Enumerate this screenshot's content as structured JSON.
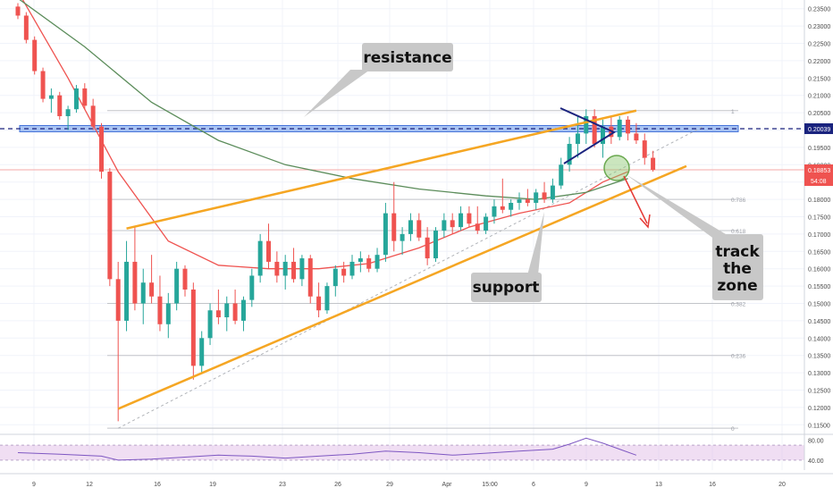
{
  "chart_data": {
    "type": "candlestick",
    "title": "",
    "price_axis": {
      "ylim": [
        0.1125,
        0.2375
      ],
      "tick_labels": [
        "0.23500",
        "0.23000",
        "0.22500",
        "0.22000",
        "0.21500",
        "0.21000",
        "0.20500",
        "0.20000",
        "0.19500",
        "0.19000",
        "0.18500",
        "0.18000",
        "0.17500",
        "0.17000",
        "0.16500",
        "0.16000",
        "0.15500",
        "0.15000",
        "0.14500",
        "0.14000",
        "0.13500",
        "0.13000",
        "0.12500",
        "0.12000",
        "0.11500"
      ],
      "tick_values": [
        0.235,
        0.23,
        0.225,
        0.22,
        0.215,
        0.21,
        0.205,
        0.2,
        0.195,
        0.19,
        0.185,
        0.18,
        0.175,
        0.17,
        0.165,
        0.16,
        0.155,
        0.15,
        0.145,
        0.14,
        0.135,
        0.13,
        0.125,
        0.12,
        0.115
      ],
      "current_price": 0.18853,
      "current_price_label": "0.18853",
      "countdown_label": "54:08",
      "resistance_price": 0.20039,
      "resistance_label": "0.20039",
      "current_color": "#ef5350",
      "resistance_color": "#1a237e"
    },
    "time_axis": {
      "labels": [
        "9",
        "12",
        "16",
        "19",
        "23",
        "26",
        "29",
        "Apr",
        "15:00",
        "6",
        "9",
        "13",
        "16",
        "20"
      ]
    },
    "series": [
      {
        "type": "candles",
        "up_color": "#26a69a",
        "down_color": "#ef5350",
        "x_start": 0,
        "x_step": 1,
        "ohlc": [
          [
            0.2356,
            0.2366,
            0.232,
            0.233
          ],
          [
            0.233,
            0.234,
            0.225,
            0.226
          ],
          [
            0.226,
            0.227,
            0.216,
            0.217
          ],
          [
            0.217,
            0.218,
            0.208,
            0.209
          ],
          [
            0.209,
            0.212,
            0.205,
            0.21
          ],
          [
            0.21,
            0.211,
            0.203,
            0.204
          ],
          [
            0.204,
            0.207,
            0.2,
            0.206
          ],
          [
            0.206,
            0.213,
            0.205,
            0.212
          ],
          [
            0.212,
            0.2135,
            0.206,
            0.207
          ],
          [
            0.207,
            0.209,
            0.2,
            0.201
          ],
          [
            0.201,
            0.202,
            0.186,
            0.188
          ],
          [
            0.188,
            0.189,
            0.155,
            0.157
          ],
          [
            0.157,
            0.162,
            0.116,
            0.145
          ],
          [
            0.145,
            0.168,
            0.142,
            0.162
          ],
          [
            0.162,
            0.172,
            0.148,
            0.15
          ],
          [
            0.15,
            0.16,
            0.144,
            0.156
          ],
          [
            0.156,
            0.164,
            0.15,
            0.152
          ],
          [
            0.152,
            0.158,
            0.142,
            0.144
          ],
          [
            0.144,
            0.153,
            0.14,
            0.15
          ],
          [
            0.15,
            0.162,
            0.148,
            0.16
          ],
          [
            0.16,
            0.161,
            0.152,
            0.154
          ],
          [
            0.154,
            0.156,
            0.128,
            0.132
          ],
          [
            0.132,
            0.142,
            0.13,
            0.14
          ],
          [
            0.14,
            0.15,
            0.138,
            0.148
          ],
          [
            0.148,
            0.154,
            0.144,
            0.146
          ],
          [
            0.146,
            0.152,
            0.142,
            0.15
          ],
          [
            0.15,
            0.154,
            0.144,
            0.145
          ],
          [
            0.145,
            0.152,
            0.142,
            0.151
          ],
          [
            0.151,
            0.16,
            0.149,
            0.158
          ],
          [
            0.158,
            0.17,
            0.156,
            0.168
          ],
          [
            0.168,
            0.173,
            0.16,
            0.162
          ],
          [
            0.162,
            0.165,
            0.156,
            0.158
          ],
          [
            0.158,
            0.164,
            0.154,
            0.162
          ],
          [
            0.162,
            0.166,
            0.156,
            0.157
          ],
          [
            0.157,
            0.164,
            0.155,
            0.163
          ],
          [
            0.163,
            0.164,
            0.15,
            0.152
          ],
          [
            0.152,
            0.156,
            0.146,
            0.148
          ],
          [
            0.148,
            0.156,
            0.147,
            0.155
          ],
          [
            0.155,
            0.161,
            0.152,
            0.16
          ],
          [
            0.16,
            0.162,
            0.156,
            0.158
          ],
          [
            0.158,
            0.164,
            0.157,
            0.162
          ],
          [
            0.162,
            0.165,
            0.159,
            0.163
          ],
          [
            0.163,
            0.164,
            0.159,
            0.16
          ],
          [
            0.16,
            0.166,
            0.159,
            0.164
          ],
          [
            0.164,
            0.179,
            0.162,
            0.176
          ],
          [
            0.176,
            0.185,
            0.165,
            0.168
          ],
          [
            0.168,
            0.172,
            0.164,
            0.17
          ],
          [
            0.17,
            0.176,
            0.168,
            0.174
          ],
          [
            0.174,
            0.176,
            0.168,
            0.169
          ],
          [
            0.169,
            0.172,
            0.161,
            0.163
          ],
          [
            0.163,
            0.172,
            0.162,
            0.171
          ],
          [
            0.171,
            0.176,
            0.169,
            0.174
          ],
          [
            0.174,
            0.176,
            0.17,
            0.172
          ],
          [
            0.172,
            0.178,
            0.171,
            0.176
          ],
          [
            0.176,
            0.178,
            0.172,
            0.173
          ],
          [
            0.173,
            0.178,
            0.17,
            0.171
          ],
          [
            0.171,
            0.176,
            0.17,
            0.175
          ],
          [
            0.175,
            0.18,
            0.173,
            0.178
          ],
          [
            0.178,
            0.186,
            0.176,
            0.177
          ],
          [
            0.177,
            0.18,
            0.175,
            0.179
          ],
          [
            0.179,
            0.182,
            0.177,
            0.18
          ],
          [
            0.18,
            0.183,
            0.178,
            0.179
          ],
          [
            0.179,
            0.183,
            0.177,
            0.182
          ],
          [
            0.182,
            0.185,
            0.179,
            0.18
          ],
          [
            0.18,
            0.186,
            0.179,
            0.184
          ],
          [
            0.184,
            0.192,
            0.183,
            0.19
          ],
          [
            0.19,
            0.198,
            0.188,
            0.196
          ],
          [
            0.196,
            0.204,
            0.192,
            0.199
          ],
          [
            0.199,
            0.206,
            0.196,
            0.204
          ],
          [
            0.204,
            0.206,
            0.195,
            0.196
          ],
          [
            0.196,
            0.203,
            0.192,
            0.201
          ],
          [
            0.201,
            0.204,
            0.196,
            0.198
          ],
          [
            0.198,
            0.204,
            0.197,
            0.203
          ],
          [
            0.203,
            0.204,
            0.197,
            0.199
          ],
          [
            0.199,
            0.202,
            0.196,
            0.197
          ],
          [
            0.197,
            0.199,
            0.19,
            0.192
          ],
          [
            0.192,
            0.194,
            0.188,
            0.1885
          ]
        ]
      },
      {
        "type": "line",
        "role": "moving average (short)",
        "color": "#ef5350",
        "points": [
          [
            0,
            0.24
          ],
          [
            6,
            0.215
          ],
          [
            12,
            0.188
          ],
          [
            18,
            0.168
          ],
          [
            24,
            0.161
          ],
          [
            30,
            0.16
          ],
          [
            36,
            0.16
          ],
          [
            42,
            0.1615
          ],
          [
            48,
            0.166
          ],
          [
            54,
            0.172
          ],
          [
            60,
            0.176
          ],
          [
            66,
            0.179
          ],
          [
            70,
            0.185
          ],
          [
            73,
            0.188
          ]
        ]
      },
      {
        "type": "line",
        "role": "moving average (long)",
        "color": "#5b8c5a",
        "points": [
          [
            0,
            0.238
          ],
          [
            8,
            0.224
          ],
          [
            16,
            0.208
          ],
          [
            24,
            0.197
          ],
          [
            32,
            0.19
          ],
          [
            40,
            0.186
          ],
          [
            48,
            0.183
          ],
          [
            56,
            0.181
          ],
          [
            62,
            0.18
          ],
          [
            68,
            0.182
          ],
          [
            73,
            0.186
          ]
        ]
      }
    ],
    "annotations": {
      "callouts": [
        {
          "text": "resistance"
        },
        {
          "text": "support"
        },
        {
          "lines": [
            "track",
            "the",
            "zone"
          ]
        }
      ],
      "fib_levels": [
        {
          "label": "1",
          "price": 0.2056
        },
        {
          "label": "0.786",
          "price": 0.18
        },
        {
          "label": "0.618",
          "price": 0.171
        },
        {
          "label": "0.382",
          "price": 0.15
        },
        {
          "label": "0.236",
          "price": 0.135
        },
        {
          "label": "0",
          "price": 0.114
        }
      ],
      "rising_wedge_upper": [
        [
          13,
          0.1716
        ],
        [
          74,
          0.2056
        ]
      ],
      "rising_wedge_lower": [
        [
          12,
          0.1196
        ],
        [
          80,
          0.1896
        ]
      ],
      "resistance_zone": [
        0.1995,
        0.2013
      ],
      "triangle_color": "#1a237e",
      "wedge_color": "#f5a623"
    },
    "rsi": {
      "tick_labels": [
        "80.00",
        "40.00"
      ],
      "band": [
        40,
        70
      ],
      "points": [
        [
          0,
          55
        ],
        [
          5,
          52
        ],
        [
          10,
          48
        ],
        [
          12,
          40
        ],
        [
          16,
          42
        ],
        [
          20,
          46
        ],
        [
          24,
          50
        ],
        [
          28,
          48
        ],
        [
          32,
          44
        ],
        [
          36,
          48
        ],
        [
          40,
          52
        ],
        [
          44,
          58
        ],
        [
          48,
          55
        ],
        [
          52,
          50
        ],
        [
          56,
          54
        ],
        [
          60,
          58
        ],
        [
          64,
          62
        ],
        [
          66,
          72
        ],
        [
          68,
          84
        ],
        [
          70,
          74
        ],
        [
          72,
          62
        ],
        [
          74,
          50
        ]
      ]
    }
  }
}
